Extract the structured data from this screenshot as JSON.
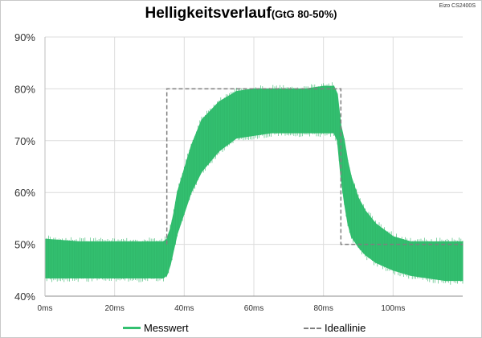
{
  "header": {
    "title": "Helligkeitsverlauf",
    "subtitle": "(GtG 80-50%)",
    "device_label": "Eizo CS2400S"
  },
  "colors": {
    "measurement": "#33c070",
    "ideal": "#7f7f7f",
    "grid": "#dcdcdc"
  },
  "chart_data": {
    "type": "line",
    "title": "Helligkeitsverlauf (GtG 80-50%)",
    "xlabel": "",
    "ylabel": "",
    "xlim": [
      0,
      120
    ],
    "ylim": [
      40,
      90
    ],
    "x_unit": "ms",
    "y_unit": "%",
    "x_ticks": [
      "0ms",
      "20ms",
      "40ms",
      "60ms",
      "80ms",
      "100ms"
    ],
    "x_tick_values": [
      0,
      20,
      40,
      60,
      80,
      100
    ],
    "y_ticks": [
      "40%",
      "50%",
      "60%",
      "70%",
      "80%",
      "90%"
    ],
    "y_tick_values": [
      40,
      50,
      60,
      70,
      80,
      90
    ],
    "grid": true,
    "legend_position": "bottom",
    "series": [
      {
        "name": "Messwert",
        "style": "band",
        "color": "#33c070",
        "x": [
          0,
          10,
          20,
          30,
          34,
          35,
          36,
          37,
          38,
          40,
          42,
          45,
          50,
          55,
          60,
          65,
          70,
          75,
          80,
          83,
          84,
          85,
          86,
          87,
          88,
          90,
          92,
          95,
          100,
          105,
          110,
          115,
          120
        ],
        "upper": [
          51,
          50.5,
          50.5,
          50.5,
          50.5,
          51,
          53,
          56,
          60,
          64.5,
          69,
          74,
          77.5,
          79.5,
          80,
          80,
          80,
          80,
          80.5,
          80.5,
          79,
          73,
          70,
          66,
          63,
          59,
          56.5,
          54,
          51.5,
          50.5,
          50.5,
          50.5,
          50.5
        ],
        "lower": [
          43.5,
          43.5,
          43.5,
          43.5,
          43.5,
          44,
          46,
          49,
          52,
          56,
          60,
          64,
          68,
          70.5,
          71,
          71.5,
          71.5,
          71.5,
          71.5,
          71.5,
          70,
          63,
          58,
          54,
          51.5,
          49.5,
          48,
          46.5,
          45,
          44,
          43.5,
          43,
          43
        ]
      },
      {
        "name": "Ideallinie",
        "style": "dashed",
        "color": "#7f7f7f",
        "x": [
          35,
          35,
          85,
          85,
          120
        ],
        "y": [
          50,
          80,
          80,
          50,
          50
        ]
      }
    ]
  },
  "legend": {
    "measurement_label": "Messwert",
    "ideal_label": "Ideallinie"
  }
}
